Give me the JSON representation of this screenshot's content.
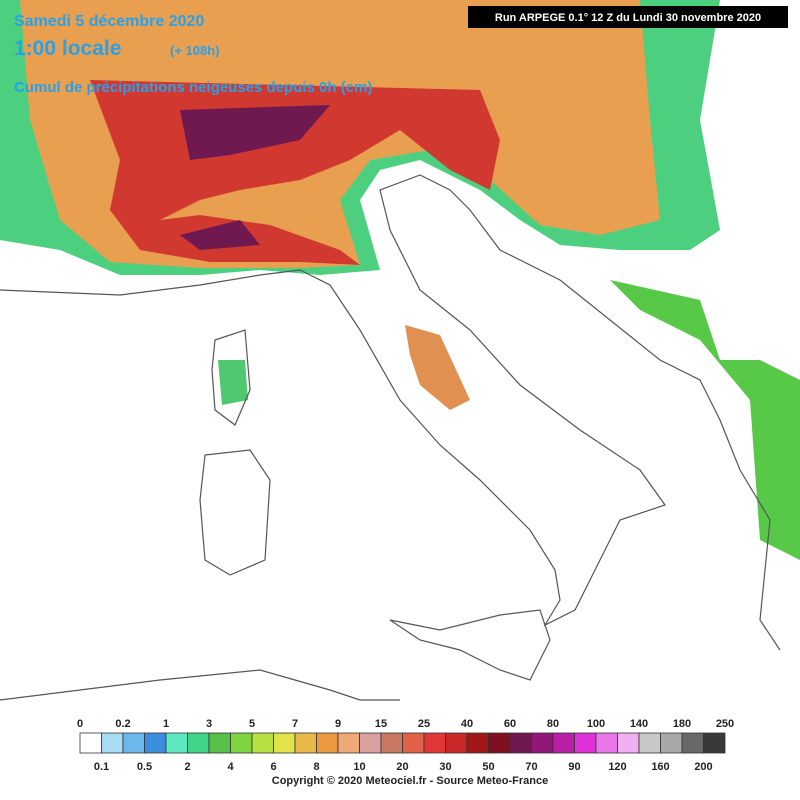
{
  "header": {
    "date": "Samedi 5 décembre 2020",
    "hour": "1:00 locale",
    "lead": "(+ 108h)",
    "subtitle": "Cumul de précipitations neigeuses depuis 0h (cm)",
    "run": "Run ARPEGE 0.1° 12 Z du Lundi 30 novembre 2020"
  },
  "legend": {
    "labels": [
      "0",
      "0.1",
      "0.2",
      "0.5",
      "1",
      "2",
      "3",
      "4",
      "5",
      "6",
      "7",
      "8",
      "9",
      "10",
      "15",
      "20",
      "25",
      "30",
      "40",
      "50",
      "60",
      "70",
      "80",
      "90",
      "100",
      "120",
      "140",
      "160",
      "180",
      "200",
      "250"
    ],
    "colors": [
      "#ffffff",
      "#a8dcf4",
      "#6cb8ec",
      "#3c8ce0",
      "#5ce8c0",
      "#40d488",
      "#58c048",
      "#80d440",
      "#b4e040",
      "#e0e448",
      "#e8b848",
      "#ec9840",
      "#f0a878",
      "#d8a0a0",
      "#c87860",
      "#e06048",
      "#e03838",
      "#c82828",
      "#a01818",
      "#801020",
      "#701850",
      "#901878",
      "#b820a8",
      "#e030d8",
      "#e878e8",
      "#f0b0f0",
      "#c8c8c8",
      "#a8a8a8",
      "#686868",
      "#383838"
    ]
  },
  "footer": {
    "copyright": "Copyright © 2020 Meteociel.fr - Source Meteo-France"
  }
}
